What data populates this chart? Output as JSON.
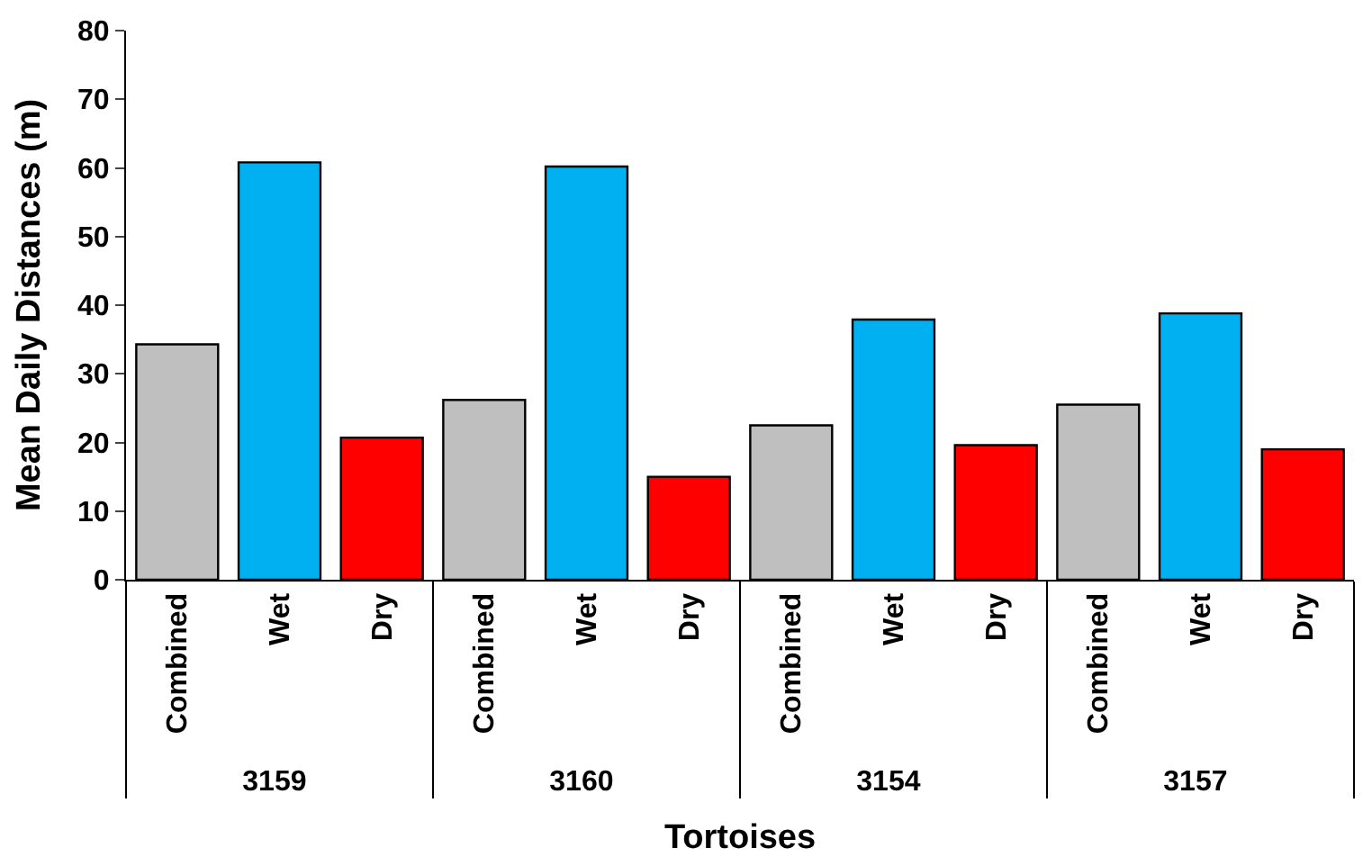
{
  "chart_data": {
    "type": "bar",
    "xlabel": "Tortoises",
    "ylabel": "Mean Daily Distances (m)",
    "categories": [
      "3159",
      "3160",
      "3154",
      "3157"
    ],
    "series": [
      {
        "name": "Combined",
        "color": "#bfbfbf",
        "values": [
          34.3,
          26.2,
          22.5,
          25.5
        ]
      },
      {
        "name": "Wet",
        "color": "#00b0f0",
        "values": [
          60.8,
          60.2,
          37.9,
          38.8
        ]
      },
      {
        "name": "Dry",
        "color": "#ff0000",
        "values": [
          20.7,
          15,
          19.6,
          19
        ]
      }
    ],
    "ylim": [
      0,
      80
    ],
    "yticks": [
      0,
      10,
      20,
      30,
      40,
      50,
      60,
      70,
      80
    ]
  }
}
